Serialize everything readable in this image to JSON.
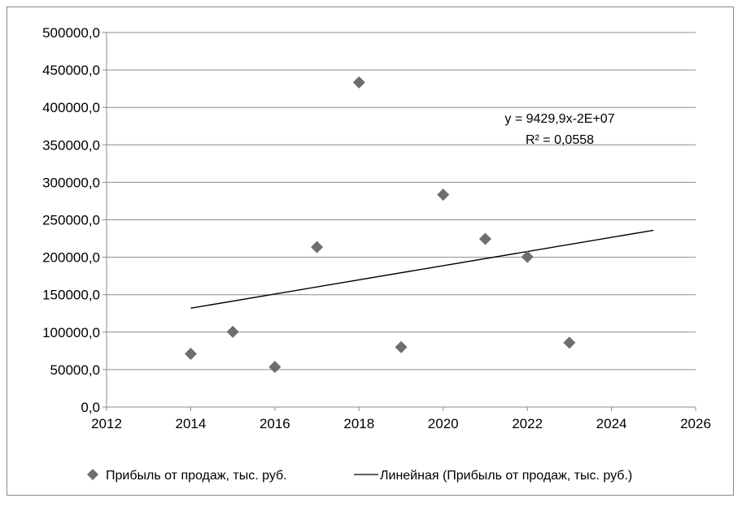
{
  "chart_data": {
    "type": "scatter",
    "x": [
      2014,
      2015,
      2016,
      2017,
      2018,
      2019,
      2020,
      2021,
      2022,
      2023
    ],
    "series": [
      {
        "name": "Прибыль от продаж, тыс. руб.",
        "marker": "diamond",
        "color": "#6e6e6e",
        "y": [
          71000,
          100500,
          53500,
          213500,
          433500,
          80000,
          283500,
          224500,
          200500,
          86000
        ]
      }
    ],
    "trendline": {
      "name": "Линейная (Прибыль от продаж, тыс. руб.)",
      "type": "linear",
      "color": "#000000",
      "x_range": [
        2014,
        2025
      ],
      "y_range": [
        132000,
        236000
      ],
      "equation": "y = 9429,9x-2E+07",
      "r_squared": "R² = 0,0558"
    },
    "xlim": [
      2012,
      2026
    ],
    "ylim": [
      0,
      500000
    ],
    "x_ticks": [
      "2012",
      "2014",
      "2016",
      "2018",
      "2020",
      "2022",
      "2024",
      "2026"
    ],
    "x_tick_values": [
      2012,
      2014,
      2016,
      2018,
      2020,
      2022,
      2024,
      2026
    ],
    "y_ticks": [
      "0,0",
      "50000,0",
      "100000,0",
      "150000,0",
      "200000,0",
      "250000,0",
      "300000,0",
      "350000,0",
      "400000,0",
      "450000,0",
      "500000,0"
    ],
    "y_tick_values": [
      0,
      50000,
      100000,
      150000,
      200000,
      250000,
      300000,
      350000,
      400000,
      450000,
      500000
    ],
    "grid": "horizontal",
    "legend_position": "bottom"
  }
}
